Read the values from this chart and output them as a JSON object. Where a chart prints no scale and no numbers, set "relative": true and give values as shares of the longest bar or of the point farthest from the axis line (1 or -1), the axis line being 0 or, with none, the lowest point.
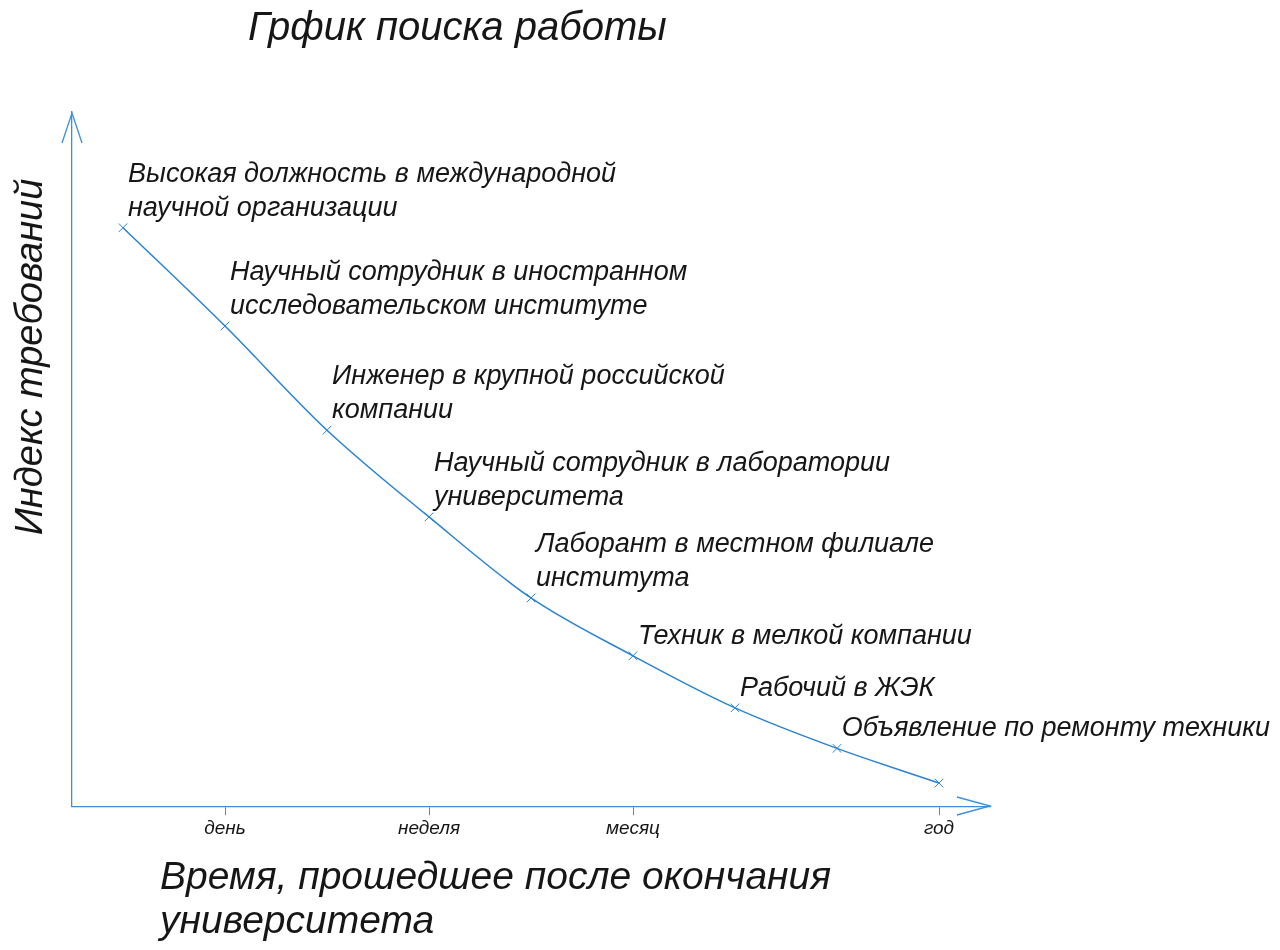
{
  "chart_data": {
    "type": "line",
    "title": "Грфик поиска работы",
    "xlabel": "Время, прошедшее после окончания университета",
    "ylabel": "Индекс требований",
    "categories": [
      null,
      "день",
      null,
      "неделя",
      null,
      "месяц",
      null,
      null,
      "год"
    ],
    "values": [
      1,
      0.83,
      0.65,
      0.5,
      0.36,
      0.26,
      0.17,
      0.1,
      0.04
    ],
    "color": "#2b83d0",
    "relative": true,
    "marker": "cross",
    "tick_labels": "x",
    "annotations": [
      "Высокая должность в международной\nнаучной организации",
      {
        "text": "Научный сотрудник в иностранном\nисследовательском институте",
        "x": "день",
        "y": 0.83
      },
      "Инженер в крупной российской\nкомпании",
      {
        "text": "Научный сотрудник в лаборатории\nуниверситета",
        "x": "неделя",
        "y": 0.5
      },
      "Лаборант в местном филиале\nинститута",
      {
        "text": "Техник в мелкой компании",
        "x": "месяц",
        "y": 0.26
      },
      "Рабочий в ЖЭК",
      "Объявление по ремонту техники"
    ]
  }
}
